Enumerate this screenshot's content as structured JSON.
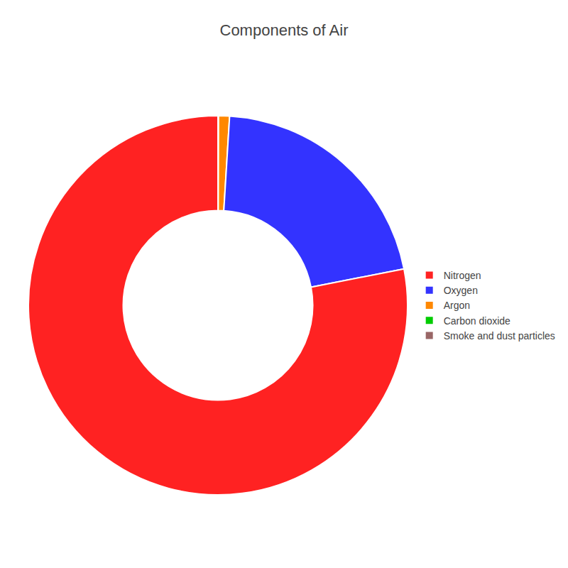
{
  "chart_data": {
    "type": "donut",
    "title": "Components of Air",
    "categories": [
      "Smoke and dust particles",
      "Carbon dioxide",
      "Argon",
      "Oxygen",
      "Nitrogen"
    ],
    "values": [
      0.01,
      0.04,
      0.93,
      20.95,
      78.07
    ],
    "colors": [
      "#996666",
      "#00cc00",
      "#ff8800",
      "#3333ff",
      "#ff2222"
    ],
    "legend": "right"
  }
}
